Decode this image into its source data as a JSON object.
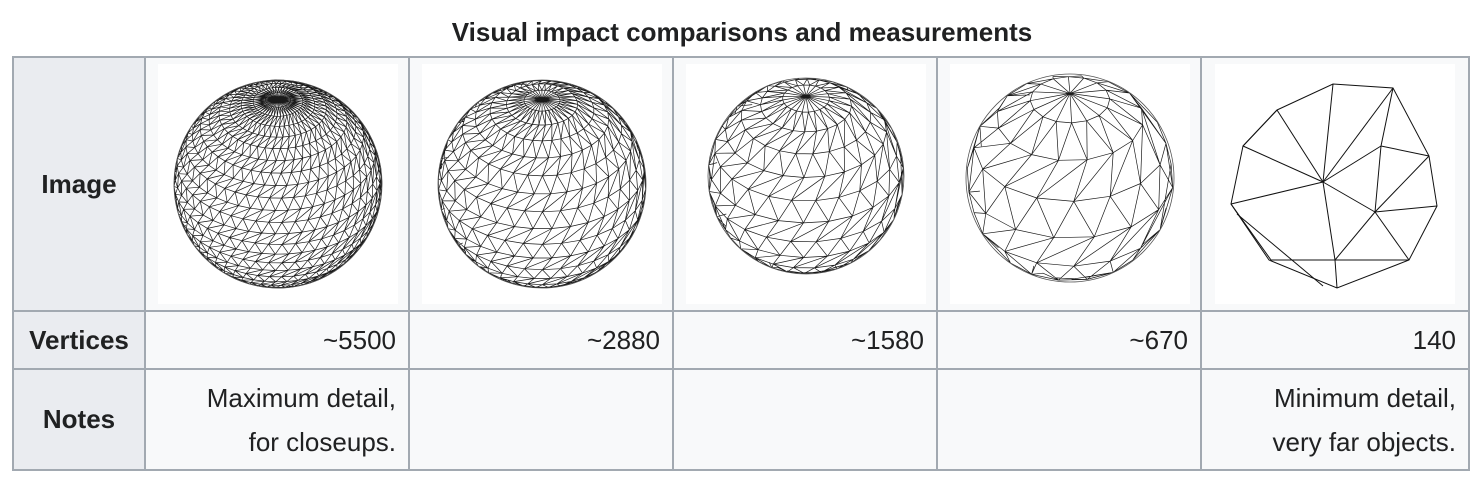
{
  "caption": "Visual impact comparisons and measurements",
  "row_headers": {
    "image": "Image",
    "vertices": "Vertices",
    "notes": "Notes"
  },
  "columns": [
    {
      "image": "sphere-wireframe-5500-icon",
      "vertices": "~5500",
      "notes": [
        "Maximum detail,",
        "for closeups."
      ]
    },
    {
      "image": "sphere-wireframe-2880-icon",
      "vertices": "~2880",
      "notes": [
        "",
        ""
      ]
    },
    {
      "image": "sphere-wireframe-1580-icon",
      "vertices": "~1580",
      "notes": [
        "",
        ""
      ]
    },
    {
      "image": "sphere-wireframe-670-icon",
      "vertices": "~670",
      "notes": [
        "",
        ""
      ]
    },
    {
      "image": "polyhedron-wireframe-140-icon",
      "vertices": "140",
      "notes": [
        "Minimum detail,",
        "very far objects."
      ]
    }
  ]
}
